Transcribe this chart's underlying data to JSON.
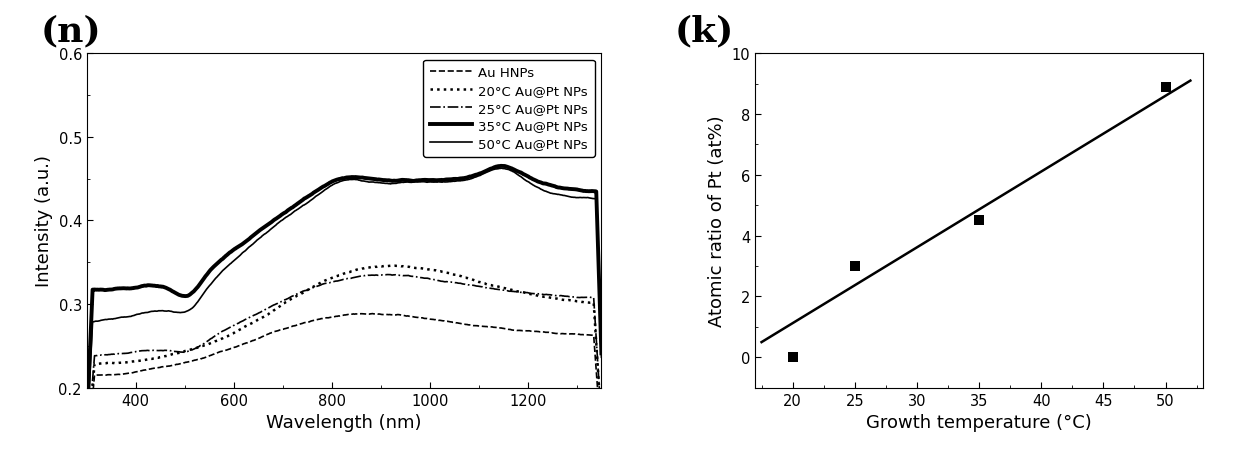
{
  "panel_n_label": "(n)",
  "panel_k_label": "(k)",
  "xlabel_n": "Wavelength (nm)",
  "ylabel_n": "Intensity (a.u.)",
  "xlabel_k": "Growth temperature (°C)",
  "ylabel_k": "Atomic ratio of Pt (at%)",
  "ylim_n": [
    0.2,
    0.6
  ],
  "xlim_n": [
    300,
    1350
  ],
  "yticks_n": [
    0.2,
    0.3,
    0.4,
    0.5,
    0.6
  ],
  "xlim_k": [
    17,
    53
  ],
  "ylim_k": [
    -1,
    10
  ],
  "yticks_k": [
    0,
    2,
    4,
    6,
    8,
    10
  ],
  "xticks_k": [
    20,
    25,
    30,
    35,
    40,
    45,
    50
  ],
  "scatter_x": [
    20,
    25,
    35,
    50
  ],
  "scatter_y": [
    0.0,
    3.0,
    4.5,
    8.9
  ],
  "fit_x": [
    17.5,
    52
  ],
  "fit_y": [
    0.5,
    9.1
  ],
  "legend_labels": [
    "Au HNPs",
    "20°C Au@Pt NPs",
    "25°C Au@Pt NPs",
    "35°C Au@Pt NPs",
    "50°C Au@Pt NPs"
  ],
  "background_color": "#ffffff",
  "line_color": "#000000"
}
